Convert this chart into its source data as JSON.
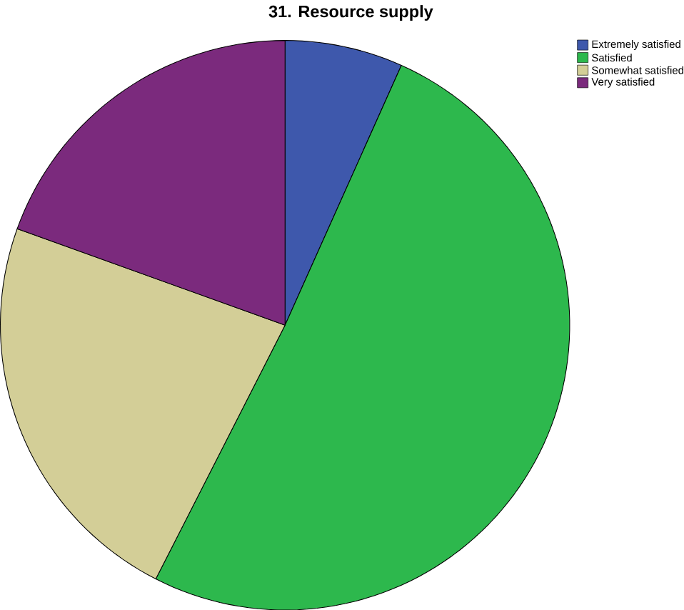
{
  "chart_data": {
    "type": "pie",
    "title": "31. Resource supply",
    "categories": [
      "Extremely satisfied",
      "Satisfied",
      "Somewhat satisfied",
      "Very satisfied"
    ],
    "values": [
      6.7,
      50.8,
      23.0,
      19.5
    ],
    "colors": [
      "#3e58ac",
      "#2db84d",
      "#d3ce97",
      "#7b2a7d"
    ],
    "legend": "top right"
  }
}
